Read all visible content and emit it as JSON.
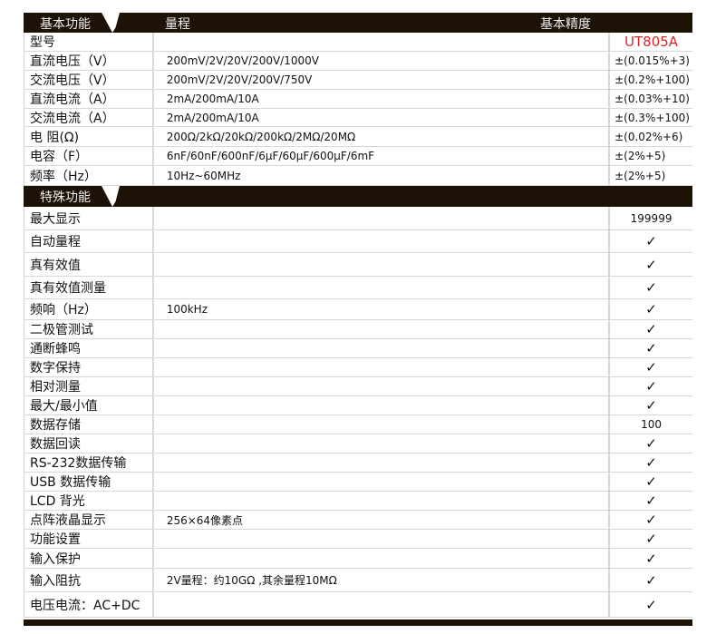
{
  "basic": {
    "section_label": "基本功能",
    "range_header": "量程",
    "accuracy_header": "基本精度",
    "rows": [
      {
        "name": "型号",
        "range": "",
        "value": "UT805A"
      },
      {
        "name": "直流电压（V）",
        "range": "200mV/2V/20V/200V/1000V",
        "value": "±(0.015%+3)"
      },
      {
        "name": "交流电压（V）",
        "range": "200mV/2V/20V/200V/750V",
        "value": "±(0.2%+100)"
      },
      {
        "name": "直流电流（A）",
        "range": "2mA/200mA/10A",
        "value": "±(0.03%+10)"
      },
      {
        "name": "交流电流（A）",
        "range": "2mA/200mA/10A",
        "value": "±(0.3%+100)"
      },
      {
        "name": "电 阻(Ω)",
        "range": "200Ω/2kΩ/20kΩ/200kΩ/2MΩ/20MΩ",
        "value": "±(0.02%+6)"
      },
      {
        "name": "电容（F）",
        "range": "6nF/60nF/600nF/6μF/60μF/600μF/6mF",
        "value": "±(2%+5)"
      },
      {
        "name": "频率（Hz）",
        "range": "10Hz~60MHz",
        "value": "±(2%+5)"
      }
    ]
  },
  "special": {
    "section_label": "特殊功能",
    "rows": [
      {
        "name": "最大显示",
        "range": "",
        "value": "199999"
      },
      {
        "name": "自动量程",
        "range": "",
        "value": "✓"
      },
      {
        "name": "真有效值",
        "range": "",
        "value": "✓"
      },
      {
        "name": "真有效值测量",
        "range": "",
        "value": "✓"
      },
      {
        "name": "频响（Hz）",
        "range": "100kHz",
        "value": "✓"
      },
      {
        "name": "二极管测试",
        "range": "",
        "value": "✓"
      },
      {
        "name": "通断蜂鸣",
        "range": "",
        "value": "✓"
      },
      {
        "name": "数字保持",
        "range": "",
        "value": "✓"
      },
      {
        "name": "相对测量",
        "range": "",
        "value": "✓"
      },
      {
        "name": "最大/最小值",
        "range": "",
        "value": "✓"
      },
      {
        "name": "数据存储",
        "range": "",
        "value": "100"
      },
      {
        "name": "数据回读",
        "range": "",
        "value": "✓"
      },
      {
        "name": "RS-232数据传输",
        "range": "",
        "value": "✓"
      },
      {
        "name": "USB 数据传输",
        "range": "",
        "value": "✓"
      },
      {
        "name": "LCD 背光",
        "range": "",
        "value": "✓"
      },
      {
        "name": "点阵液晶显示",
        "range": "256×64像素点",
        "value": "✓"
      },
      {
        "name": "功能设置",
        "range": "",
        "value": "✓"
      },
      {
        "name": "输入保护",
        "range": "",
        "value": "✓"
      },
      {
        "name": "输入阻抗",
        "range": "2V量程：约10GΩ ,其余量程10MΩ",
        "value": "✓"
      },
      {
        "name": "电压电流：AC+DC",
        "range": "",
        "value": "✓"
      }
    ]
  },
  "colors": {
    "header_bg": "#1e1206",
    "model_text": "#d8262c"
  }
}
